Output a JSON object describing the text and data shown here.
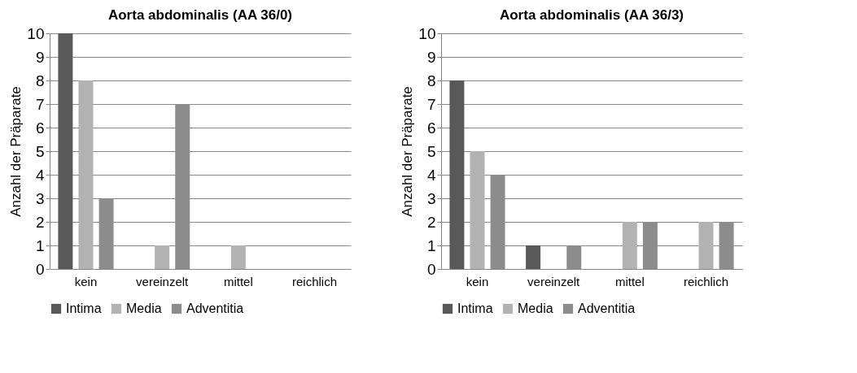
{
  "chart_data": [
    {
      "type": "bar",
      "title": "Aorta abdominalis (AA 36/0)",
      "ylabel": "Anzahl der Präparate",
      "categories": [
        "kein",
        "vereinzelt",
        "mittel",
        "reichlich"
      ],
      "series": [
        {
          "name": "Intima",
          "color": "#595959",
          "values": [
            10,
            0,
            0,
            0
          ]
        },
        {
          "name": "Media",
          "color": "#b2b2b2",
          "values": [
            8,
            1,
            1,
            0
          ]
        },
        {
          "name": "Adventitia",
          "color": "#8c8c8c",
          "values": [
            3,
            7,
            0,
            0
          ]
        }
      ],
      "ylim": [
        0,
        10
      ],
      "yticks": [
        0,
        1,
        2,
        3,
        4,
        5,
        6,
        7,
        8,
        9,
        10
      ],
      "grid": "y",
      "legend": "bottom"
    },
    {
      "type": "bar",
      "title": "Aorta abdominalis (AA 36/3)",
      "ylabel": "Anzahl der Präparate",
      "categories": [
        "kein",
        "vereinzelt",
        "mittel",
        "reichlich"
      ],
      "series": [
        {
          "name": "Intima",
          "color": "#595959",
          "values": [
            8,
            1,
            0,
            0
          ]
        },
        {
          "name": "Media",
          "color": "#b2b2b2",
          "values": [
            5,
            0,
            2,
            2
          ]
        },
        {
          "name": "Adventitia",
          "color": "#8c8c8c",
          "values": [
            4,
            1,
            2,
            2
          ]
        }
      ],
      "ylim": [
        0,
        10
      ],
      "yticks": [
        0,
        1,
        2,
        3,
        4,
        5,
        6,
        7,
        8,
        9,
        10
      ],
      "grid": "y",
      "legend": "bottom"
    }
  ]
}
